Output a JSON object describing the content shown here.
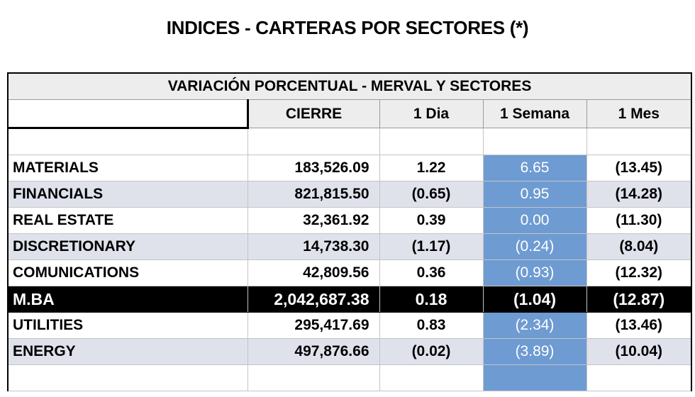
{
  "page_title": "INDICES - CARTERAS POR SECTORES (*)",
  "table": {
    "caption": "VARIACIÓN PORCENTUAL - MERVAL Y SECTORES",
    "headers": {
      "cierre": "CIERRE",
      "dia": "1 Dia",
      "semana": "1 Semana",
      "mes": "1 Mes"
    },
    "rows": [
      {
        "name": "MATERIALS",
        "cierre": "183,526.09",
        "dia": "1.22",
        "semana": "6.65",
        "mes": "(13.45)"
      },
      {
        "name": "FINANCIALS",
        "cierre": "821,815.50",
        "dia": "(0.65)",
        "semana": "0.95",
        "mes": "(14.28)"
      },
      {
        "name": "REAL ESTATE",
        "cierre": "32,361.92",
        "dia": "0.39",
        "semana": "0.00",
        "mes": "(11.30)"
      },
      {
        "name": "DISCRETIONARY",
        "cierre": "14,738.30",
        "dia": "(1.17)",
        "semana": "(0.24)",
        "mes": "(8.04)"
      },
      {
        "name": "COMUNICATIONS",
        "cierre": "42,809.56",
        "dia": "0.36",
        "semana": "(0.93)",
        "mes": "(12.32)"
      },
      {
        "name": "M.BA",
        "cierre": "2,042,687.38",
        "dia": "0.18",
        "semana": "(1.04)",
        "mes": "(12.87)"
      },
      {
        "name": "UTILITIES",
        "cierre": "295,417.69",
        "dia": "0.83",
        "semana": "(2.34)",
        "mes": "(13.46)"
      },
      {
        "name": "ENERGY",
        "cierre": "497,876.66",
        "dia": "(0.02)",
        "semana": "(3.89)",
        "mes": "(10.04)"
      }
    ]
  },
  "colors": {
    "highlight_blue": "#6e9bd2",
    "row_shade": "#dfe2ea",
    "header_gray": "#ededed",
    "total_row": "#000000"
  }
}
